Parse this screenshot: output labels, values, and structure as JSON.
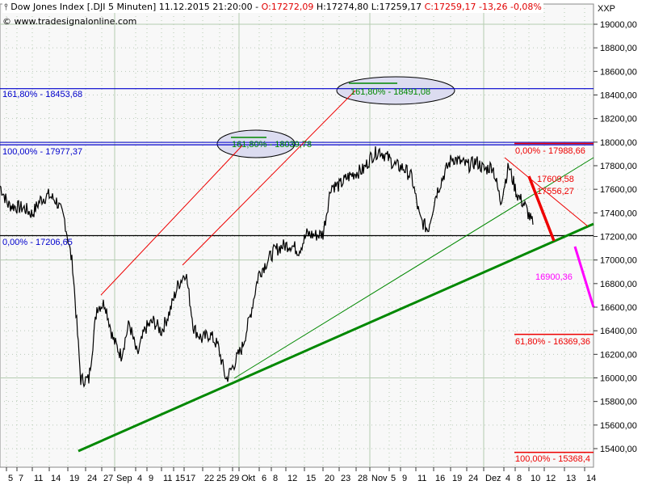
{
  "header": {
    "symbol_icon": "candle-icon",
    "title": "Dow Jones Index [.DJI  5 Minuten]",
    "datetime": "11.12.2015 21:20:00",
    "open": "O:17272,09",
    "high": "H:17274,80",
    "low": "L:17259,17",
    "close": "C:17259,17",
    "change": "-13,26",
    "change_pct": "-0,08%",
    "copyright": "© www.tradesignalonline.com",
    "axis_caption": "XXP"
  },
  "colors": {
    "price": "#000000",
    "fib_blue": "#0000cc",
    "fib_red": "#ee0000",
    "target": "#ff00ff",
    "trend": "#008800",
    "ellipse": "#dcdcf0"
  },
  "chart_data": {
    "type": "line",
    "title": "Dow Jones Index [.DJI  5 Minuten]",
    "ylim": [
      15300,
      19150
    ],
    "grid": true,
    "y_ticks": [
      "19000,00",
      "18800,00",
      "18600,00",
      "18400,00",
      "18200,00",
      "18000,00",
      "17800,00",
      "17600,00",
      "17400,00",
      "17200,00",
      "17000,00",
      "16800,00",
      "16600,00",
      "16400,00",
      "16200,00",
      "16000,00",
      "15800,00",
      "15600,00",
      "15400,00"
    ],
    "x_ticks": [
      "5",
      "7",
      "11",
      "14",
      "19",
      "24",
      "27",
      "Sep",
      "4",
      "9",
      "11",
      "15",
      "17",
      "22",
      "25",
      "29",
      "Okt",
      "6",
      "8",
      "12",
      "15",
      "20",
      "23",
      "28",
      "Nov",
      "5",
      "9",
      "11",
      "16",
      "19",
      "24",
      "Dez",
      "4",
      "8",
      "10",
      "12",
      "13",
      "14"
    ],
    "series": [
      {
        "values": [
          17630,
          17470,
          17450,
          17440,
          17390,
          17510,
          17550,
          17500,
          17340,
          16950,
          15985,
          15985,
          16600,
          16635,
          16330,
          16190,
          16465,
          16190,
          16420,
          16480,
          16395,
          16560,
          16780,
          16900,
          16420,
          16330,
          16370,
          16270,
          15985,
          16120,
          16260,
          16530,
          16875,
          16980,
          17080,
          17120,
          17130,
          17080,
          17220,
          17210,
          17220,
          17630,
          17630,
          17700,
          17740,
          17765,
          17880,
          17930,
          17870,
          17800,
          17780,
          17700,
          17350,
          17255,
          17560,
          17730,
          17870,
          17830,
          17800,
          17835,
          17765,
          17800,
          17495,
          17800,
          17560,
          17460,
          17300
        ]
      }
    ],
    "levels": [
      {
        "label": "161,80% - 18453,68",
        "value": 18453.68,
        "color": "blue"
      },
      {
        "label": "100,00% - 17977,37",
        "value": 17977.37,
        "color": "blue"
      },
      {
        "label": "0,00% - 17206,65",
        "value": 17206.65,
        "color": "black"
      },
      {
        "label": "0,00% - 17988,66",
        "value": 17988.66,
        "color": "red"
      },
      {
        "label": "61,80% - 16369,36",
        "value": 16369.36,
        "color": "red"
      },
      {
        "label": "100,00% - 15368,4",
        "value": 15368.4,
        "color": "red"
      }
    ],
    "annotations": [
      {
        "label": "161,80% - 18491,08",
        "value": 18491.08,
        "color": "green"
      },
      {
        "label": "161,80% - 18039,78",
        "value": 18039.78,
        "color": "green"
      },
      {
        "label": "17609,58",
        "value": 17609.58,
        "color": "red"
      },
      {
        "label": "17556,27",
        "value": 17556.27,
        "color": "red"
      },
      {
        "label": "16900,36",
        "value": 16900.36,
        "color": "magenta"
      }
    ]
  }
}
